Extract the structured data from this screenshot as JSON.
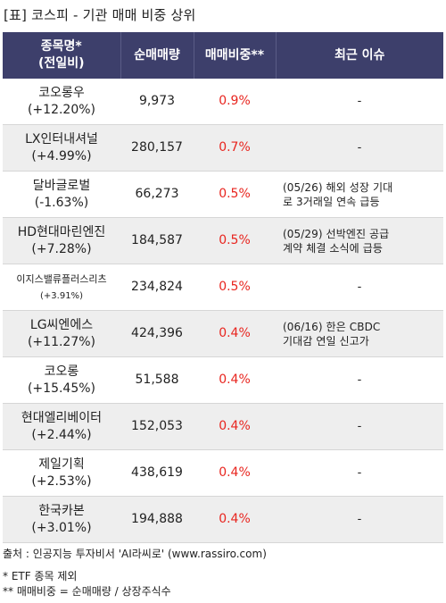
{
  "title": "[표] 코스피 - 기관 매매 비중 상위",
  "headers": {
    "name_line1": "종목명*",
    "name_line2": "(전일비)",
    "net_volume": "순매매량",
    "ratio": "매매비중**",
    "issue": "최근 이슈"
  },
  "rows": [
    {
      "name": "코오롱우",
      "change": "(+12.20%)",
      "volume": "9,973",
      "ratio": "0.9%",
      "issue1": "-",
      "issue2": ""
    },
    {
      "name": "LX인터내셔널",
      "change": "(+4.99%)",
      "volume": "280,157",
      "ratio": "0.7%",
      "issue1": "-",
      "issue2": ""
    },
    {
      "name": "달바글로벌",
      "change": "(-1.63%)",
      "volume": "66,273",
      "ratio": "0.5%",
      "issue1": "(05/26) 해외 성장 기대",
      "issue2": "로 3거래일 연속 급등"
    },
    {
      "name": "HD현대마린엔진",
      "change": "(+7.28%)",
      "volume": "184,587",
      "ratio": "0.5%",
      "issue1": "(05/29) 선박엔진 공급",
      "issue2": "계약 체결 소식에 급등"
    },
    {
      "name": "이지스밸류플러스리츠",
      "change": "(+3.91%)",
      "volume": "234,824",
      "ratio": "0.5%",
      "issue1": "-",
      "issue2": ""
    },
    {
      "name": "LG씨엔에스",
      "change": "(+11.27%)",
      "volume": "424,396",
      "ratio": "0.4%",
      "issue1": "(06/16) 한은 CBDC",
      "issue2": "기대감 연일 신고가"
    },
    {
      "name": "코오롱",
      "change": "(+15.45%)",
      "volume": "51,588",
      "ratio": "0.4%",
      "issue1": "-",
      "issue2": ""
    },
    {
      "name": "현대엘리베이터",
      "change": "(+2.44%)",
      "volume": "152,053",
      "ratio": "0.4%",
      "issue1": "-",
      "issue2": ""
    },
    {
      "name": "제일기획",
      "change": "(+2.53%)",
      "volume": "438,619",
      "ratio": "0.4%",
      "issue1": "-",
      "issue2": ""
    },
    {
      "name": "한국카본",
      "change": "(+3.01%)",
      "volume": "194,888",
      "ratio": "0.4%",
      "issue1": "-",
      "issue2": ""
    }
  ],
  "footer": {
    "source": "출처 : 인공지능 투자비서 'AI라씨로' (www.rassiro.com)",
    "note1": "* ETF 종목 제외",
    "note2": "** 매매비중 = 순매매량 / 상장주식수"
  },
  "colors": {
    "header_bg": "#3d3f6b",
    "ratio_text": "#e8251f",
    "row_alt_bg": "#eeeeee"
  }
}
